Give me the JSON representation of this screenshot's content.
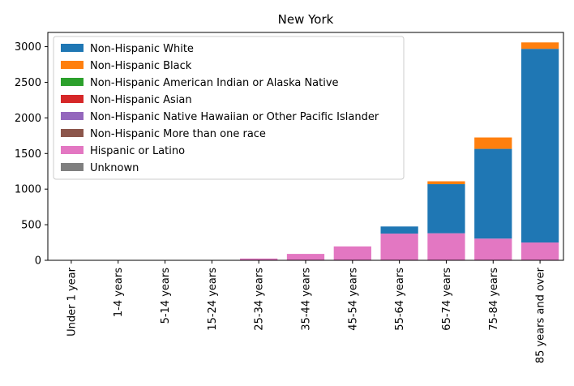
{
  "chart_data": {
    "type": "bar",
    "stacked": true,
    "title": "New York",
    "xlabel": "",
    "ylabel": "",
    "ylim": [
      0,
      3200
    ],
    "yticks": [
      0,
      500,
      1000,
      1500,
      2000,
      2500,
      3000
    ],
    "grid": false,
    "legend_position": "top-left",
    "categories": [
      "Under 1 year",
      "1-4 years",
      "5-14 years",
      "15-24 years",
      "25-34 years",
      "35-44 years",
      "45-54 years",
      "55-64 years",
      "65-74 years",
      "75-84 years",
      "85 years and over"
    ],
    "series": [
      {
        "name": "Non-Hispanic White",
        "color": "#1f77b4",
        "values": [
          0,
          0,
          0,
          0,
          0,
          0,
          0,
          100,
          690,
          1260,
          2720
        ]
      },
      {
        "name": "Non-Hispanic Black",
        "color": "#ff7f0e",
        "values": [
          0,
          0,
          0,
          0,
          0,
          0,
          0,
          0,
          40,
          160,
          90
        ]
      },
      {
        "name": "Non-Hispanic American Indian or Alaska Native",
        "color": "#2ca02c",
        "values": [
          0,
          0,
          0,
          0,
          0,
          0,
          0,
          0,
          0,
          0,
          0
        ]
      },
      {
        "name": "Non-Hispanic Asian",
        "color": "#d62728",
        "values": [
          0,
          0,
          0,
          0,
          0,
          0,
          0,
          0,
          0,
          0,
          0
        ]
      },
      {
        "name": "Non-Hispanic Native Hawaiian or Other Pacific Islander",
        "color": "#9467bd",
        "values": [
          0,
          0,
          0,
          0,
          0,
          0,
          0,
          0,
          0,
          0,
          0
        ]
      },
      {
        "name": "Non-Hispanic More than one race",
        "color": "#8c564b",
        "values": [
          0,
          0,
          0,
          0,
          0,
          0,
          0,
          0,
          0,
          0,
          0
        ]
      },
      {
        "name": "Hispanic or Latino",
        "color": "#e377c2",
        "values": [
          0,
          0,
          0,
          0,
          25,
          90,
          195,
          375,
          380,
          305,
          250
        ]
      },
      {
        "name": "Unknown",
        "color": "#7f7f7f",
        "values": [
          0,
          0,
          0,
          0,
          0,
          0,
          0,
          0,
          0,
          0,
          0
        ]
      }
    ]
  }
}
